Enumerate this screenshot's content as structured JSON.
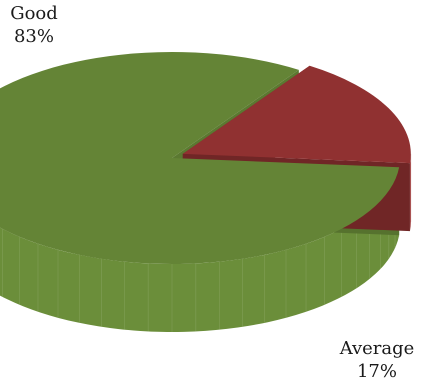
{
  "chart_data": {
    "type": "pie",
    "style": "3d-exploded",
    "slices": [
      {
        "label": "Good",
        "value": 83,
        "display": "83%",
        "color": "#6b8e3a"
      },
      {
        "label": "Average",
        "value": 17,
        "display": "17%",
        "color": "#9b3535"
      }
    ],
    "title": "",
    "legend": "none",
    "data_labels": "outside"
  }
}
